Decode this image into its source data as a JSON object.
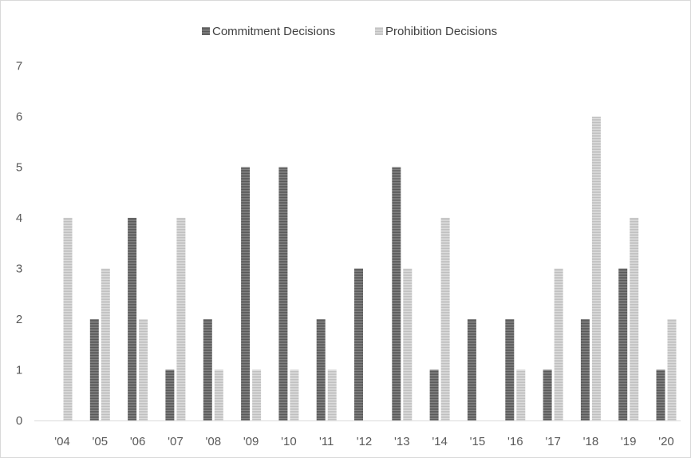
{
  "chart_data": {
    "type": "bar",
    "categories": [
      "'04",
      "'05",
      "'06",
      "'07",
      "'08",
      "'09",
      "'10",
      "'11",
      "'12",
      "'13",
      "'14",
      "'15",
      "'16",
      "'17",
      "'18",
      "'19",
      "'20"
    ],
    "series": [
      {
        "name": "Commitment Decisions",
        "color": "#595959",
        "values": [
          0,
          2,
          4,
          1,
          2,
          5,
          5,
          2,
          3,
          5,
          1,
          2,
          2,
          1,
          2,
          3,
          1
        ]
      },
      {
        "name": "Prohibition Decisions",
        "color": "#bfbfbf",
        "values": [
          4,
          3,
          2,
          4,
          1,
          1,
          1,
          1,
          0,
          3,
          4,
          0,
          1,
          3,
          6,
          4,
          2
        ]
      }
    ],
    "yticks": [
      "0",
      "1",
      "2",
      "3",
      "4",
      "5",
      "6",
      "7"
    ],
    "ylim": [
      0,
      7
    ],
    "grid": false,
    "legend_position": "top-center",
    "title": "",
    "xlabel": "",
    "ylabel": ""
  }
}
